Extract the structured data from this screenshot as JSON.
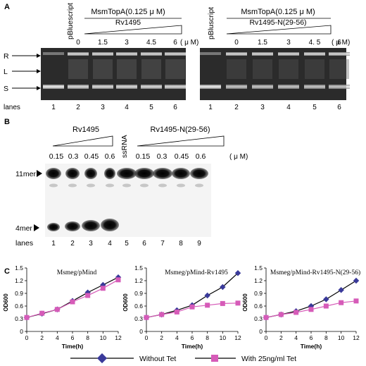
{
  "panelA": {
    "label": "A",
    "left": {
      "control_label": "pBluescript",
      "enzyme_label": "MsmTopA(0.125 μ M)",
      "protein_label": "Rv1495",
      "concentrations": [
        "0",
        "1.5",
        "3",
        "4.5",
        "6"
      ],
      "unit": "( μ M)",
      "band_labels": [
        "R",
        "L",
        "S"
      ],
      "lanes_label": "lanes",
      "lane_numbers": [
        "1",
        "2",
        "3",
        "4",
        "5",
        "6"
      ]
    },
    "right": {
      "control_label": "pBluscript",
      "enzyme_label": "MsmTopA(0.125 μ M)",
      "protein_label": "Rv1495-N(29-56)",
      "concentrations": [
        "0",
        "1.5",
        "3",
        "4. 5",
        "6"
      ],
      "unit": "( μ M)",
      "lane_numbers": [
        "1",
        "2",
        "3",
        "4",
        "5",
        "6"
      ]
    }
  },
  "panelB": {
    "label": "B",
    "left_protein": "Rv1495",
    "right_protein": "Rv1495-N(29-56)",
    "control_label": "ssRNA",
    "left_concentrations": [
      "0.15",
      "0.3",
      "0.45",
      "0.6"
    ],
    "right_concentrations": [
      "0.15",
      "0.3",
      "0.45",
      "0.6"
    ],
    "unit": "( μ M)",
    "band_11": "11mer",
    "band_4": "4mer",
    "lanes_label": "lanes",
    "lane_numbers": [
      "1",
      "2",
      "3",
      "4",
      "5",
      "6",
      "7",
      "8",
      "9"
    ]
  },
  "panelC": {
    "label": "C",
    "colors": {
      "without": "#3a3a9a",
      "with": "#d65bb8"
    },
    "legend": {
      "without": "Without Tet",
      "with": "With 25ng/ml Tet"
    },
    "chart_data": [
      {
        "type": "line",
        "title": "Msmeg/pMind",
        "xlabel": "Time(h)",
        "ylabel": "OD600",
        "x": [
          0,
          2,
          4,
          6,
          8,
          10,
          12
        ],
        "xlim": [
          0,
          12
        ],
        "ylim": [
          0,
          1.5
        ],
        "yticks": [
          "0",
          "0.3",
          "0.6",
          "0.9",
          "1.2",
          "1.5"
        ],
        "xticks": [
          "0",
          "2",
          "4",
          "6",
          "8",
          "10",
          "12"
        ],
        "series": [
          {
            "name": "Without Tet",
            "values": [
              0.33,
              0.42,
              0.52,
              0.72,
              0.92,
              1.1,
              1.28
            ]
          },
          {
            "name": "With 25ng/ml Tet",
            "values": [
              0.33,
              0.43,
              0.52,
              0.7,
              0.85,
              1.02,
              1.22
            ]
          }
        ]
      },
      {
        "type": "line",
        "title": "Msmeg/pMind-Rv1495",
        "xlabel": "Time(h)",
        "ylabel": "OD600",
        "x": [
          0,
          2,
          4,
          6,
          8,
          10,
          12
        ],
        "xlim": [
          0,
          12
        ],
        "ylim": [
          0,
          1.5
        ],
        "yticks": [
          "0",
          "0.3",
          "0.6",
          "0.9",
          "1.2",
          "1.5"
        ],
        "xticks": [
          "0",
          "2",
          "4",
          "6",
          "8",
          "10",
          "12"
        ],
        "series": [
          {
            "name": "Without Tet",
            "values": [
              0.33,
              0.4,
              0.5,
              0.62,
              0.85,
              1.05,
              1.38
            ]
          },
          {
            "name": "With 25ng/ml Tet",
            "values": [
              0.33,
              0.4,
              0.46,
              0.58,
              0.62,
              0.66,
              0.67
            ]
          }
        ]
      },
      {
        "type": "line",
        "title": "Msmeg/pMind-Rv1495-N(29-56)",
        "xlabel": "Time(h)",
        "ylabel": "OD600",
        "x": [
          0,
          2,
          4,
          6,
          8,
          10,
          12
        ],
        "xlim": [
          0,
          12
        ],
        "ylim": [
          0,
          1.5
        ],
        "yticks": [
          "0",
          "0.3",
          "0.6",
          "0.9",
          "1.2",
          "1.5"
        ],
        "xticks": [
          "0",
          "2",
          "4",
          "6",
          "8",
          "10",
          "12"
        ],
        "series": [
          {
            "name": "Without Tet",
            "values": [
              0.33,
              0.4,
              0.48,
              0.6,
              0.76,
              0.98,
              1.2
            ]
          },
          {
            "name": "With 25ng/ml Tet",
            "values": [
              0.33,
              0.4,
              0.45,
              0.52,
              0.6,
              0.68,
              0.72
            ]
          }
        ]
      }
    ]
  }
}
